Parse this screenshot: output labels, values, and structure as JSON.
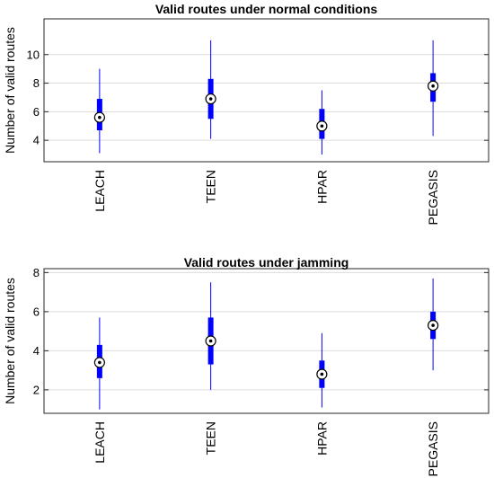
{
  "chart_data": [
    {
      "type": "box",
      "title": "Valid routes under normal conditions",
      "ylabel": "Number of valid routes",
      "xlabel": "",
      "ylim": [
        2.5,
        12.5
      ],
      "yticks": [
        4,
        6,
        8,
        10
      ],
      "grid": true,
      "color": "#0000ff",
      "categories": [
        "LEACH",
        "TEEN",
        "HPAR",
        "PEGASIS"
      ],
      "boxes": [
        {
          "min": 3.1,
          "q1": 4.7,
          "median": 5.6,
          "q3": 6.9,
          "max": 9.0
        },
        {
          "min": 4.1,
          "q1": 5.5,
          "median": 6.9,
          "q3": 8.3,
          "max": 11.0
        },
        {
          "min": 3.0,
          "q1": 4.1,
          "median": 5.0,
          "q3": 6.2,
          "max": 7.5
        },
        {
          "min": 4.3,
          "q1": 6.7,
          "median": 7.8,
          "q3": 8.7,
          "max": 11.0
        }
      ]
    },
    {
      "type": "box",
      "title": "Valid routes under jamming",
      "ylabel": "Number of valid routes",
      "xlabel": "",
      "ylim": [
        0.8,
        8.2
      ],
      "yticks": [
        2,
        4,
        6,
        8
      ],
      "grid": true,
      "color": "#0000ff",
      "categories": [
        "LEACH",
        "TEEN",
        "HPAR",
        "PEGASIS"
      ],
      "boxes": [
        {
          "min": 1.0,
          "q1": 2.6,
          "median": 3.4,
          "q3": 4.3,
          "max": 5.7
        },
        {
          "min": 2.0,
          "q1": 3.3,
          "median": 4.5,
          "q3": 5.7,
          "max": 7.5
        },
        {
          "min": 1.1,
          "q1": 2.1,
          "median": 2.8,
          "q3": 3.5,
          "max": 4.9
        },
        {
          "min": 3.0,
          "q1": 4.6,
          "median": 5.3,
          "q3": 6.0,
          "max": 7.7
        }
      ]
    }
  ]
}
